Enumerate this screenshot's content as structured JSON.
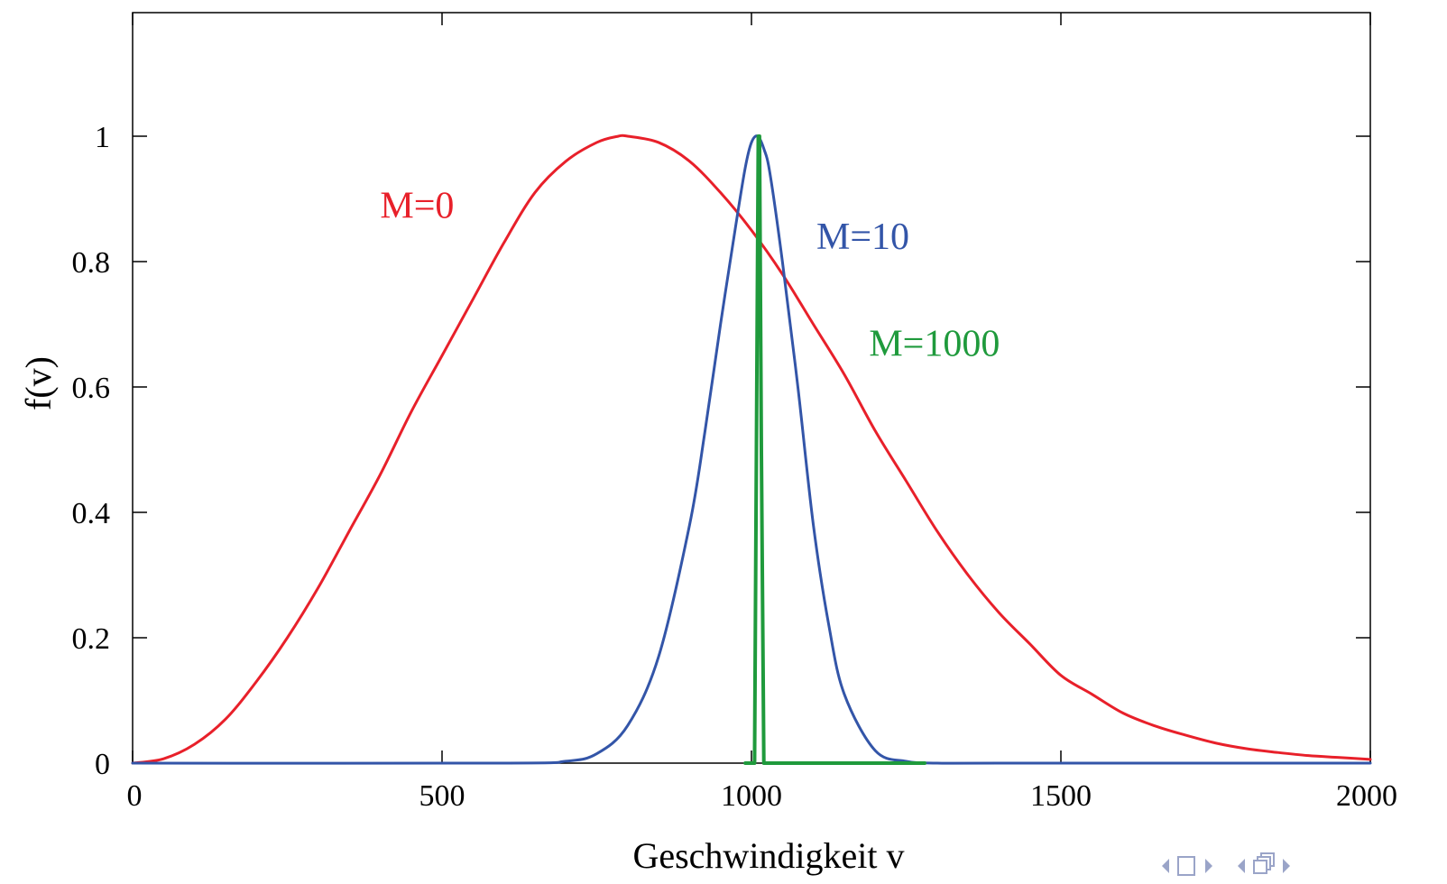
{
  "chart_data": {
    "type": "line",
    "title": "",
    "xlabel": "Geschwindigkeit v",
    "ylabel": "f(v)",
    "xlim": [
      0,
      2000
    ],
    "ylim": [
      0,
      1.0
    ],
    "xticks": [
      0,
      500,
      1000,
      1500,
      2000
    ],
    "yticks": [
      0,
      0.2,
      0.4,
      0.6,
      0.8,
      1
    ],
    "xtick_labels": [
      "0",
      "500",
      "1000",
      "1500",
      "2000"
    ],
    "ytick_labels": [
      "0",
      "0.2",
      "0.4",
      "0.6",
      "0.8",
      "1"
    ],
    "grid": false,
    "series": [
      {
        "name": "M=0",
        "color": "#e8202a",
        "x": [
          0,
          50,
          100,
          150,
          200,
          250,
          300,
          350,
          400,
          450,
          500,
          550,
          600,
          650,
          700,
          750,
          785,
          800,
          850,
          900,
          950,
          1000,
          1050,
          1100,
          1150,
          1200,
          1250,
          1300,
          1350,
          1400,
          1450,
          1500,
          1550,
          1600,
          1650,
          1700,
          1750,
          1800,
          1850,
          1900,
          1950,
          2000
        ],
        "y": [
          0,
          0.007,
          0.03,
          0.07,
          0.13,
          0.2,
          0.28,
          0.37,
          0.46,
          0.56,
          0.65,
          0.74,
          0.83,
          0.91,
          0.96,
          0.99,
          1.0,
          1.0,
          0.99,
          0.96,
          0.91,
          0.85,
          0.78,
          0.7,
          0.62,
          0.53,
          0.45,
          0.37,
          0.3,
          0.24,
          0.19,
          0.14,
          0.11,
          0.08,
          0.06,
          0.045,
          0.032,
          0.023,
          0.017,
          0.012,
          0.009,
          0.006
        ]
      },
      {
        "name": "M=10",
        "color": "#3355a8",
        "x": [
          0,
          600,
          700,
          750,
          800,
          850,
          900,
          925,
          950,
          975,
          990,
          1000,
          1010,
          1020,
          1030,
          1050,
          1075,
          1100,
          1125,
          1150,
          1200,
          1250,
          1300,
          1400,
          2000
        ],
        "y": [
          0,
          0,
          0.003,
          0.015,
          0.06,
          0.17,
          0.38,
          0.53,
          0.7,
          0.86,
          0.95,
          0.99,
          1.0,
          0.98,
          0.94,
          0.8,
          0.6,
          0.38,
          0.22,
          0.11,
          0.02,
          0.003,
          0.0,
          0,
          0
        ]
      },
      {
        "name": "M=1000",
        "color": "#1f9a3c",
        "x": [
          990,
          1005,
          1008,
          1011,
          1013,
          1016,
          1020,
          1280
        ],
        "y": [
          0,
          0,
          0.5,
          1.0,
          1.0,
          0.5,
          0,
          0
        ]
      }
    ],
    "annotations": [
      {
        "text": "M=0",
        "series": "M=0",
        "x": 400,
        "y": 0.87
      },
      {
        "text": "M=10",
        "series": "M=10",
        "x": 1105,
        "y": 0.82
      },
      {
        "text": "M=1000",
        "series": "M=1000",
        "x": 1190,
        "y": 0.65
      }
    ]
  },
  "nav": {
    "icons": [
      "nav-left-arrow-icon",
      "frame-icon",
      "nav-right-arrow-icon",
      "nav-left-arrow-icon",
      "stack-icon",
      "nav-right-arrow-icon"
    ]
  }
}
